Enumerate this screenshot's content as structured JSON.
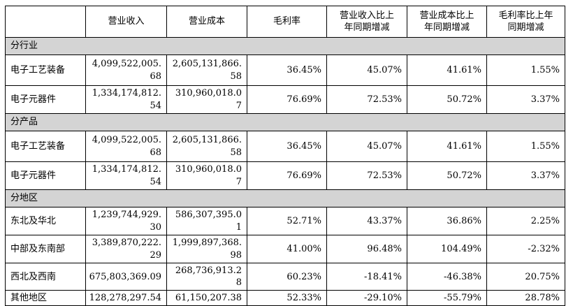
{
  "table": {
    "columns": [
      "",
      "营业收入",
      "营业成本",
      "毛利率",
      "营业收入比上\n年同期增减",
      "营业成本比上\n年同期增减",
      "毛利率比上年\n同期增减"
    ],
    "sections": [
      {
        "title": "分行业",
        "rows": [
          {
            "label": "电子工艺装备",
            "revenue": "4,099,522,005.68",
            "cost": "2,605,131,866.58",
            "gross_margin": "36.45%",
            "revenue_yoy": "45.07%",
            "cost_yoy": "41.61%",
            "margin_yoy": "1.55%"
          },
          {
            "label": "电子元器件",
            "revenue": "1,334,174,812.54",
            "cost": "310,960,018.07",
            "gross_margin": "76.69%",
            "revenue_yoy": "72.53%",
            "cost_yoy": "50.72%",
            "margin_yoy": "3.37%"
          }
        ]
      },
      {
        "title": "分产品",
        "rows": [
          {
            "label": "电子工艺装备",
            "revenue": "4,099,522,005.68",
            "cost": "2,605,131,866.58",
            "gross_margin": "36.45%",
            "revenue_yoy": "45.07%",
            "cost_yoy": "41.61%",
            "margin_yoy": "1.55%"
          },
          {
            "label": "电子元器件",
            "revenue": "1,334,174,812.54",
            "cost": "310,960,018.07",
            "gross_margin": "76.69%",
            "revenue_yoy": "72.53%",
            "cost_yoy": "50.72%",
            "margin_yoy": "3.37%"
          }
        ]
      },
      {
        "title": "分地区",
        "rows": [
          {
            "label": "东北及华北",
            "revenue": "1,239,744,929.30",
            "cost": "586,307,395.01",
            "gross_margin": "52.71%",
            "revenue_yoy": "43.37%",
            "cost_yoy": "36.86%",
            "margin_yoy": "2.25%"
          },
          {
            "label": "中部及东南部",
            "revenue": "3,389,870,222.29",
            "cost": "1,999,897,368.98",
            "gross_margin": "41.00%",
            "revenue_yoy": "96.48%",
            "cost_yoy": "104.49%",
            "margin_yoy": "-2.32%"
          },
          {
            "label": "西北及西南",
            "revenue": "675,803,369.09",
            "cost": "268,736,913.28",
            "gross_margin": "60.23%",
            "revenue_yoy": "-18.41%",
            "cost_yoy": "-46.38%",
            "margin_yoy": "20.75%"
          },
          {
            "label": "其他地区",
            "revenue": "128,278,297.54",
            "cost": "61,150,207.38",
            "gross_margin": "52.33%",
            "revenue_yoy": "-29.10%",
            "cost_yoy": "-55.79%",
            "margin_yoy": "28.78%"
          }
        ]
      }
    ],
    "colors": {
      "section_bg": "#d4d4d4",
      "border": "#000000",
      "text": "#000000"
    }
  }
}
